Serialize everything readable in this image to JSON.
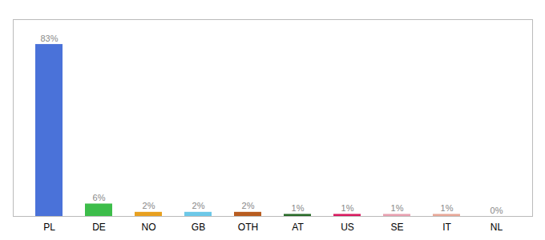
{
  "chart_data": {
    "type": "bar",
    "categories": [
      "PL",
      "DE",
      "NO",
      "GB",
      "OTH",
      "AT",
      "US",
      "SE",
      "IT",
      "NL"
    ],
    "values": [
      83,
      6,
      2,
      2,
      2,
      1,
      1,
      1,
      1,
      0
    ],
    "value_labels": [
      "83%",
      "6%",
      "2%",
      "2%",
      "2%",
      "1%",
      "1%",
      "1%",
      "1%",
      "0%"
    ],
    "colors": [
      "#4A72D9",
      "#3DBD4A",
      "#E8A020",
      "#6CC8E8",
      "#B85C20",
      "#2A6B2A",
      "#D81B60",
      "#E8A0B0",
      "#E8A898",
      "#AAAAAA"
    ],
    "ylim": [
      0,
      95
    ],
    "data_labels": true,
    "tick_labels": "x",
    "grid": false
  }
}
